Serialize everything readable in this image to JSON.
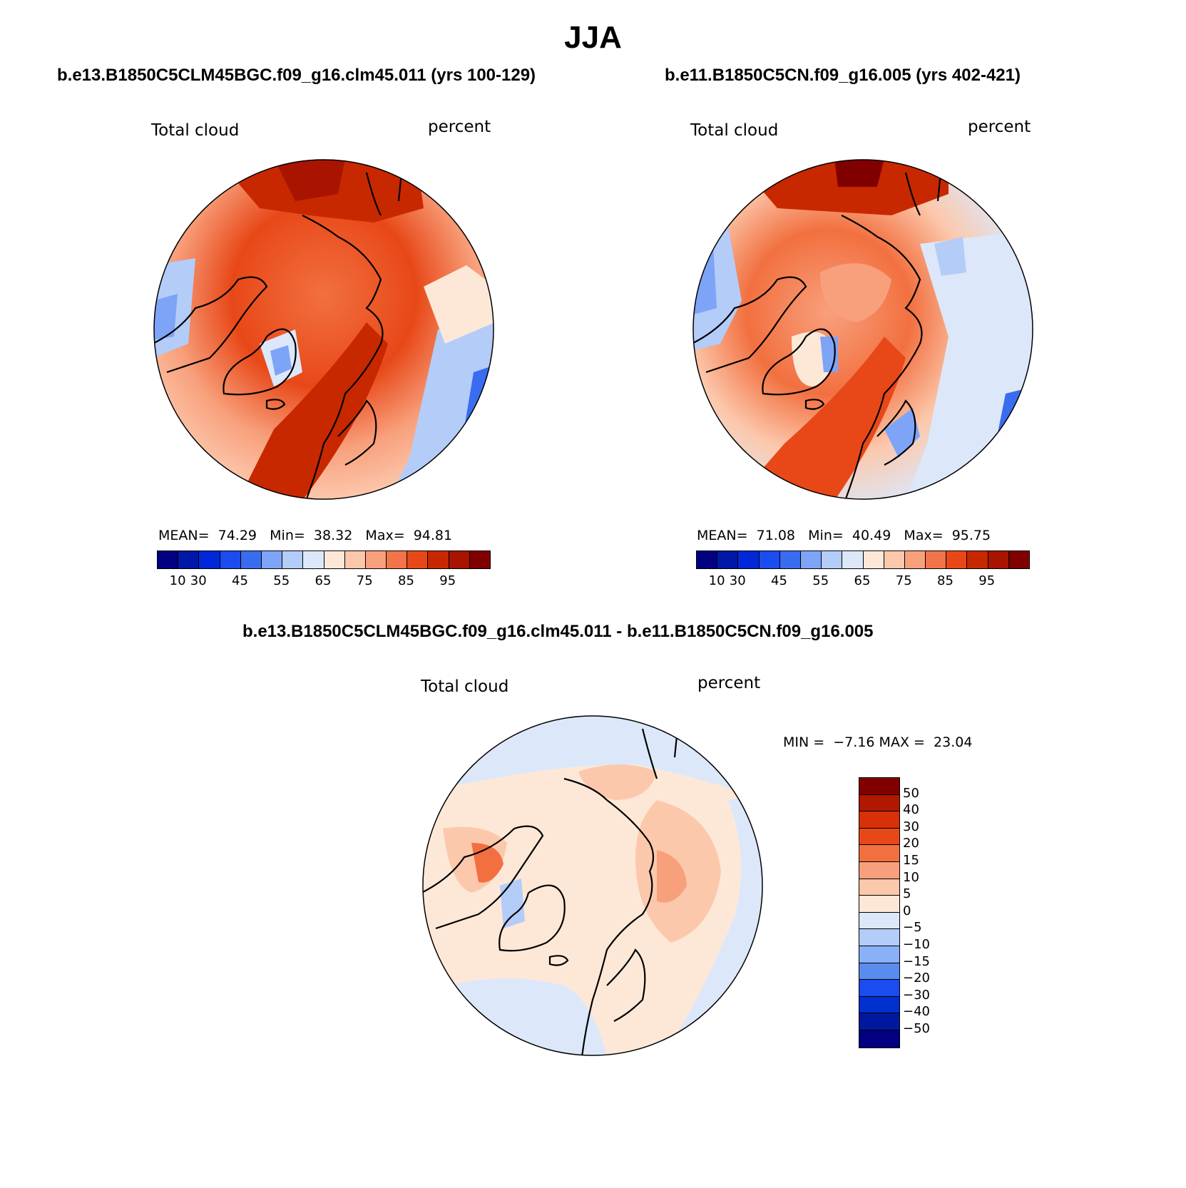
{
  "title": "JJA",
  "panels": [
    {
      "case": "b.e13.B1850C5CLM45BGC.f09_g16.clm45.011 (yrs 100-129)",
      "variable": "Total cloud",
      "units": "percent",
      "stats": {
        "mean_label": "MEAN=",
        "mean": "74.29",
        "min_label": "Min=",
        "min": "38.32",
        "max_label": "Max=",
        "max": "94.81"
      }
    },
    {
      "case": "b.e11.B1850C5CN.f09_g16.005 (yrs 402-421)",
      "variable": "Total cloud",
      "units": "percent",
      "stats": {
        "mean_label": "MEAN=",
        "mean": "71.08",
        "min_label": "Min=",
        "min": "40.49",
        "max_label": "Max=",
        "max": "95.75"
      }
    }
  ],
  "diff_panel": {
    "case": "b.e13.B1850C5CLM45BGC.f09_g16.clm45.011 - b.e11.B1850C5CN.f09_g16.005",
    "variable": "Total cloud",
    "units": "percent",
    "stats": {
      "min_label": "MIN =",
      "min": "−7.16",
      "max_label": "MAX =",
      "max": "23.04"
    }
  },
  "abs_colorbar": {
    "colors": [
      "#000080",
      "#0018a8",
      "#0028d8",
      "#1a4cf0",
      "#3a6cf0",
      "#7ea4f8",
      "#b4ccf8",
      "#dce8fa",
      "#fde8d8",
      "#fcc8ac",
      "#f8a07c",
      "#f2744a",
      "#e84818",
      "#c82800",
      "#a81400",
      "#800000"
    ],
    "labels": [
      "10",
      "30",
      "45",
      "55",
      "65",
      "75",
      "85",
      "95"
    ]
  },
  "diff_colorbar": {
    "colors": [
      "#800000",
      "#b01800",
      "#d83008",
      "#e84818",
      "#f27040",
      "#f8a07c",
      "#fcc8ac",
      "#fde8d8",
      "#dce8fa",
      "#b4ccf8",
      "#8ab0f8",
      "#5a8cf0",
      "#1a4cf0",
      "#0030d0",
      "#0018a0",
      "#000080"
    ],
    "labels": [
      "50",
      "40",
      "30",
      "20",
      "15",
      "10",
      "5",
      "0",
      "−5",
      "−10",
      "−15",
      "−20",
      "−30",
      "−40",
      "−50"
    ]
  },
  "chart_data": [
    {
      "type": "heatmap",
      "projection": "north-polar-stereographic",
      "title": "Total cloud",
      "units": "percent",
      "mean": 74.29,
      "min": 38.32,
      "max": 94.81,
      "levels": [
        10,
        20,
        30,
        40,
        45,
        50,
        55,
        60,
        65,
        70,
        75,
        80,
        85,
        90,
        95
      ]
    },
    {
      "type": "heatmap",
      "projection": "north-polar-stereographic",
      "title": "Total cloud",
      "units": "percent",
      "mean": 71.08,
      "min": 40.49,
      "max": 95.75,
      "levels": [
        10,
        20,
        30,
        40,
        45,
        50,
        55,
        60,
        65,
        70,
        75,
        80,
        85,
        90,
        95
      ]
    },
    {
      "type": "heatmap",
      "projection": "north-polar-stereographic",
      "title": "Total cloud",
      "units": "percent",
      "min": -7.16,
      "max": 23.04,
      "levels": [
        -50,
        -40,
        -30,
        -20,
        -15,
        -10,
        -5,
        0,
        5,
        10,
        15,
        20,
        30,
        40,
        50
      ]
    }
  ]
}
